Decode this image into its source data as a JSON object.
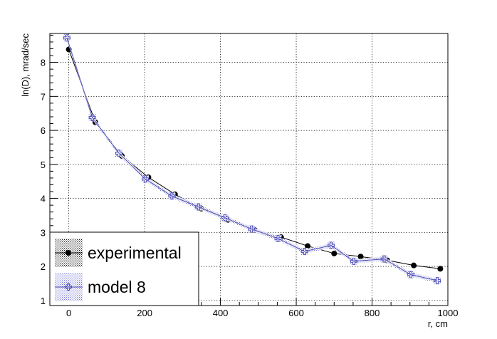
{
  "chart_data": {
    "type": "line",
    "title": "",
    "xlabel": "r, cm",
    "ylabel": "ln(D), mrad/sec",
    "xlim": [
      -50,
      1000
    ],
    "ylim": [
      0.85,
      8.85
    ],
    "xticks": [
      0,
      200,
      400,
      600,
      800,
      1000
    ],
    "yticks": [
      1,
      2,
      3,
      4,
      5,
      6,
      7,
      8
    ],
    "grid": true,
    "legend_position": "bottom-left",
    "series": [
      {
        "name": "experimental",
        "color": "#000000",
        "marker": "filled-circle",
        "x": [
          0,
          70,
          140,
          210,
          280,
          350,
          420,
          490,
          560,
          630,
          700,
          770,
          840,
          910,
          980
        ],
        "y": [
          8.38,
          6.24,
          5.25,
          4.62,
          4.12,
          3.7,
          3.37,
          3.07,
          2.86,
          2.6,
          2.38,
          2.29,
          2.18,
          2.03,
          1.93
        ]
      },
      {
        "name": "model 8",
        "color": "#4f4fb8",
        "marker": "open-cross",
        "x": [
          -5,
          62,
          132,
          202,
          272,
          342,
          412,
          482,
          552,
          622,
          692,
          752,
          832,
          902,
          972
        ],
        "y": [
          8.72,
          6.38,
          5.33,
          4.57,
          4.07,
          3.75,
          3.43,
          3.1,
          2.82,
          2.44,
          2.62,
          2.15,
          2.22,
          1.76,
          1.58
        ]
      }
    ]
  }
}
